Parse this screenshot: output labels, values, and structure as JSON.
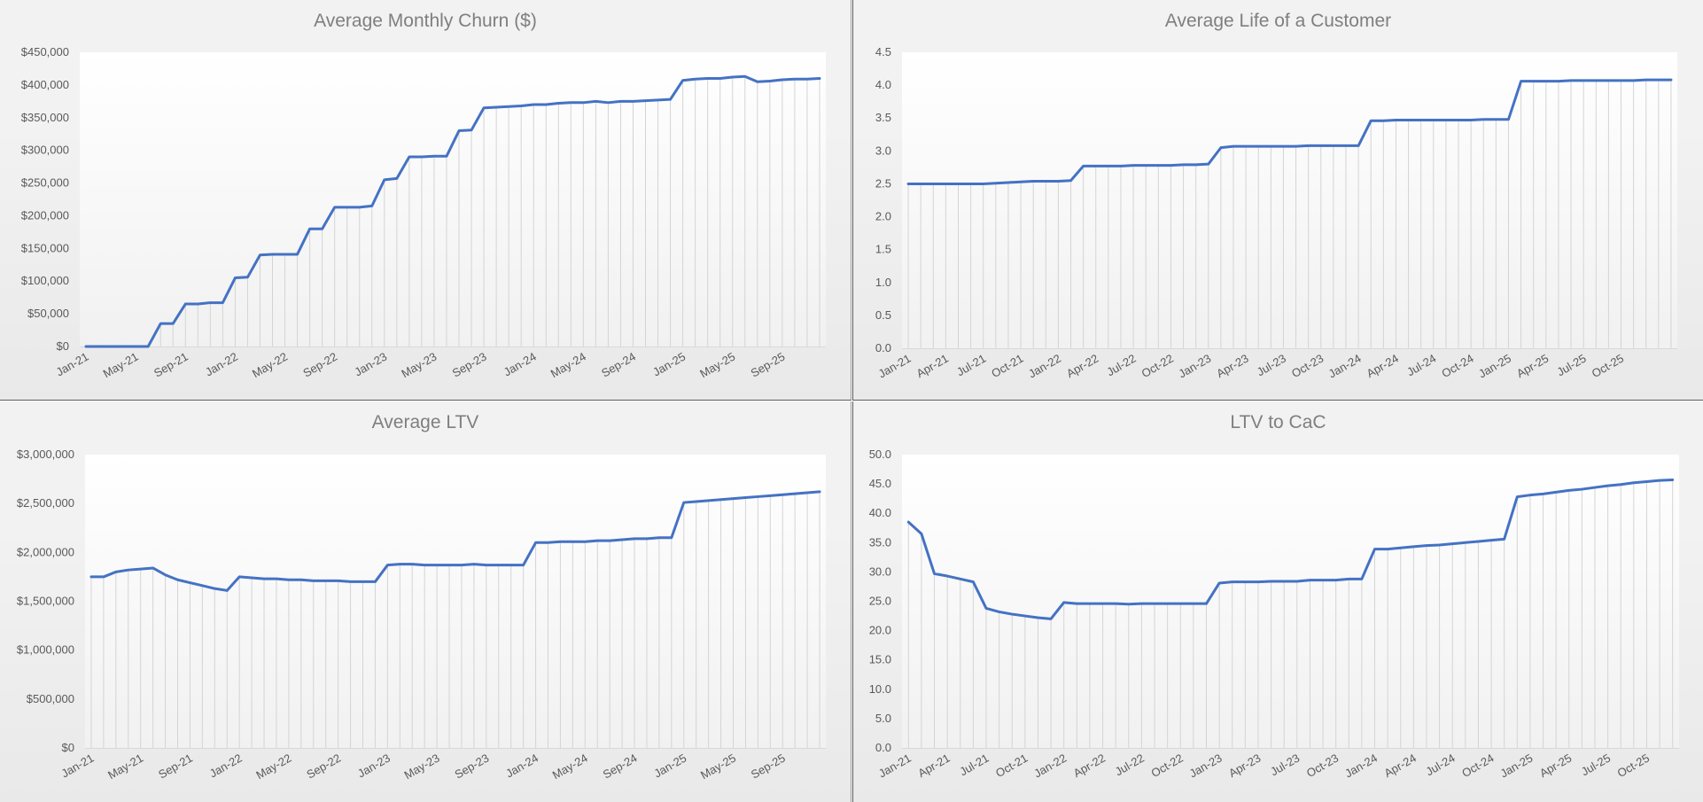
{
  "chart_data": [
    {
      "type": "line",
      "title": "Average Monthly Churn ($)",
      "xlabel": "",
      "ylabel": "",
      "ylim": [
        0,
        450000
      ],
      "y_ticks": [
        "$0",
        "$50,000",
        "$100,000",
        "$150,000",
        "$200,000",
        "$250,000",
        "$300,000",
        "$350,000",
        "$400,000",
        "$450,000"
      ],
      "x_tick_labels": [
        {
          "index": 0,
          "label": "Jan-21"
        },
        {
          "index": 4,
          "label": "May-21"
        },
        {
          "index": 8,
          "label": "Sep-21"
        },
        {
          "index": 12,
          "label": "Jan-22"
        },
        {
          "index": 16,
          "label": "May-22"
        },
        {
          "index": 20,
          "label": "Sep-22"
        },
        {
          "index": 24,
          "label": "Jan-23"
        },
        {
          "index": 28,
          "label": "May-23"
        },
        {
          "index": 32,
          "label": "Sep-23"
        },
        {
          "index": 36,
          "label": "Jan-24"
        },
        {
          "index": 40,
          "label": "May-24"
        },
        {
          "index": 44,
          "label": "Sep-24"
        },
        {
          "index": 48,
          "label": "Jan-25"
        },
        {
          "index": 52,
          "label": "May-25"
        },
        {
          "index": 56,
          "label": "Sep-25"
        }
      ],
      "grid": "vertical drop lines",
      "color": "#4472c4",
      "series": [
        {
          "values": [
            0,
            0,
            0,
            0,
            0,
            0,
            35000,
            35000,
            65000,
            65000,
            67000,
            67000,
            105000,
            106000,
            140000,
            141000,
            141000,
            141000,
            180000,
            180000,
            213000,
            213000,
            213000,
            215000,
            255000,
            257000,
            290000,
            290000,
            291000,
            291000,
            330000,
            331000,
            365000,
            366000,
            367000,
            368000,
            370000,
            370000,
            372000,
            373000,
            373000,
            375000,
            373000,
            375000,
            375000,
            376000,
            377000,
            378000,
            407000,
            409000,
            410000,
            410000,
            412000,
            413000,
            405000,
            406000,
            408000,
            409000,
            409000,
            410000
          ]
        }
      ]
    },
    {
      "type": "line",
      "title": "Average Life of a Customer",
      "xlabel": "",
      "ylabel": "",
      "ylim": [
        0,
        4.5
      ],
      "y_ticks": [
        "0.0",
        "0.5",
        "1.0",
        "1.5",
        "2.0",
        "2.5",
        "3.0",
        "3.5",
        "4.0",
        "4.5"
      ],
      "x_tick_labels": [
        {
          "index": 0,
          "label": "Jan-21"
        },
        {
          "index": 3,
          "label": "Apr-21"
        },
        {
          "index": 6,
          "label": "Jul-21"
        },
        {
          "index": 9,
          "label": "Oct-21"
        },
        {
          "index": 12,
          "label": "Jan-22"
        },
        {
          "index": 15,
          "label": "Apr-22"
        },
        {
          "index": 18,
          "label": "Jul-22"
        },
        {
          "index": 21,
          "label": "Oct-22"
        },
        {
          "index": 24,
          "label": "Jan-23"
        },
        {
          "index": 27,
          "label": "Apr-23"
        },
        {
          "index": 30,
          "label": "Jul-23"
        },
        {
          "index": 33,
          "label": "Oct-23"
        },
        {
          "index": 36,
          "label": "Jan-24"
        },
        {
          "index": 39,
          "label": "Apr-24"
        },
        {
          "index": 42,
          "label": "Jul-24"
        },
        {
          "index": 45,
          "label": "Oct-24"
        },
        {
          "index": 48,
          "label": "Jan-25"
        },
        {
          "index": 51,
          "label": "Apr-25"
        },
        {
          "index": 54,
          "label": "Jul-25"
        },
        {
          "index": 57,
          "label": "Oct-25"
        }
      ],
      "grid": "vertical drop lines",
      "color": "#4472c4",
      "series": [
        {
          "values": [
            2.5,
            2.5,
            2.5,
            2.5,
            2.5,
            2.5,
            2.5,
            2.51,
            2.52,
            2.53,
            2.54,
            2.54,
            2.54,
            2.55,
            2.77,
            2.77,
            2.77,
            2.77,
            2.78,
            2.78,
            2.78,
            2.78,
            2.79,
            2.79,
            2.8,
            3.05,
            3.07,
            3.07,
            3.07,
            3.07,
            3.07,
            3.07,
            3.08,
            3.08,
            3.08,
            3.08,
            3.08,
            3.46,
            3.46,
            3.47,
            3.47,
            3.47,
            3.47,
            3.47,
            3.47,
            3.47,
            3.48,
            3.48,
            3.48,
            4.06,
            4.06,
            4.06,
            4.06,
            4.07,
            4.07,
            4.07,
            4.07,
            4.07,
            4.07,
            4.08,
            4.08,
            4.08
          ]
        }
      ]
    },
    {
      "type": "line",
      "title": "Average LTV",
      "xlabel": "",
      "ylabel": "",
      "ylim": [
        0,
        3000000
      ],
      "y_ticks": [
        "$0",
        "$500,000",
        "$1,000,000",
        "$1,500,000",
        "$2,000,000",
        "$2,500,000",
        "$3,000,000"
      ],
      "x_tick_labels": [
        {
          "index": 0,
          "label": "Jan-21"
        },
        {
          "index": 4,
          "label": "May-21"
        },
        {
          "index": 8,
          "label": "Sep-21"
        },
        {
          "index": 12,
          "label": "Jan-22"
        },
        {
          "index": 16,
          "label": "May-22"
        },
        {
          "index": 20,
          "label": "Sep-22"
        },
        {
          "index": 24,
          "label": "Jan-23"
        },
        {
          "index": 28,
          "label": "May-23"
        },
        {
          "index": 32,
          "label": "Sep-23"
        },
        {
          "index": 36,
          "label": "Jan-24"
        },
        {
          "index": 40,
          "label": "May-24"
        },
        {
          "index": 44,
          "label": "Sep-24"
        },
        {
          "index": 48,
          "label": "Jan-25"
        },
        {
          "index": 52,
          "label": "May-25"
        },
        {
          "index": 56,
          "label": "Sep-25"
        }
      ],
      "grid": "vertical drop lines",
      "color": "#4472c4",
      "series": [
        {
          "values": [
            1750000,
            1750000,
            1800000,
            1820000,
            1830000,
            1840000,
            1770000,
            1720000,
            1690000,
            1660000,
            1630000,
            1610000,
            1750000,
            1740000,
            1730000,
            1730000,
            1720000,
            1720000,
            1710000,
            1710000,
            1710000,
            1700000,
            1700000,
            1700000,
            1870000,
            1880000,
            1880000,
            1870000,
            1870000,
            1870000,
            1870000,
            1880000,
            1870000,
            1870000,
            1870000,
            1870000,
            2100000,
            2100000,
            2110000,
            2110000,
            2110000,
            2120000,
            2120000,
            2130000,
            2140000,
            2140000,
            2150000,
            2150000,
            2510000,
            2520000,
            2530000,
            2540000,
            2550000,
            2560000,
            2570000,
            2580000,
            2590000,
            2600000,
            2610000,
            2620000
          ]
        }
      ]
    },
    {
      "type": "line",
      "title": "LTV to CaC",
      "xlabel": "",
      "ylabel": "",
      "ylim": [
        0,
        50
      ],
      "y_ticks": [
        "0.0",
        "5.0",
        "10.0",
        "15.0",
        "20.0",
        "25.0",
        "30.0",
        "35.0",
        "40.0",
        "45.0",
        "50.0"
      ],
      "x_tick_labels": [
        {
          "index": 0,
          "label": "Jan-21"
        },
        {
          "index": 3,
          "label": "Apr-21"
        },
        {
          "index": 6,
          "label": "Jul-21"
        },
        {
          "index": 9,
          "label": "Oct-21"
        },
        {
          "index": 12,
          "label": "Jan-22"
        },
        {
          "index": 15,
          "label": "Apr-22"
        },
        {
          "index": 18,
          "label": "Jul-22"
        },
        {
          "index": 21,
          "label": "Oct-22"
        },
        {
          "index": 24,
          "label": "Jan-23"
        },
        {
          "index": 27,
          "label": "Apr-23"
        },
        {
          "index": 30,
          "label": "Jul-23"
        },
        {
          "index": 33,
          "label": "Oct-23"
        },
        {
          "index": 36,
          "label": "Jan-24"
        },
        {
          "index": 39,
          "label": "Apr-24"
        },
        {
          "index": 42,
          "label": "Jul-24"
        },
        {
          "index": 45,
          "label": "Oct-24"
        },
        {
          "index": 48,
          "label": "Jan-25"
        },
        {
          "index": 51,
          "label": "Apr-25"
        },
        {
          "index": 54,
          "label": "Jul-25"
        },
        {
          "index": 57,
          "label": "Oct-25"
        }
      ],
      "grid": "vertical drop lines",
      "color": "#4472c4",
      "series": [
        {
          "values": [
            38.5,
            36.5,
            29.7,
            29.3,
            28.8,
            28.3,
            23.8,
            23.2,
            22.8,
            22.5,
            22.2,
            22.0,
            24.8,
            24.6,
            24.6,
            24.6,
            24.6,
            24.5,
            24.6,
            24.6,
            24.6,
            24.6,
            24.6,
            24.6,
            28.1,
            28.3,
            28.3,
            28.3,
            28.4,
            28.4,
            28.4,
            28.6,
            28.6,
            28.6,
            28.8,
            28.8,
            33.9,
            33.9,
            34.1,
            34.3,
            34.5,
            34.6,
            34.8,
            35.0,
            35.2,
            35.4,
            35.6,
            42.8,
            43.1,
            43.3,
            43.6,
            43.9,
            44.1,
            44.4,
            44.7,
            44.9,
            45.2,
            45.4,
            45.6,
            45.7
          ]
        }
      ]
    }
  ]
}
